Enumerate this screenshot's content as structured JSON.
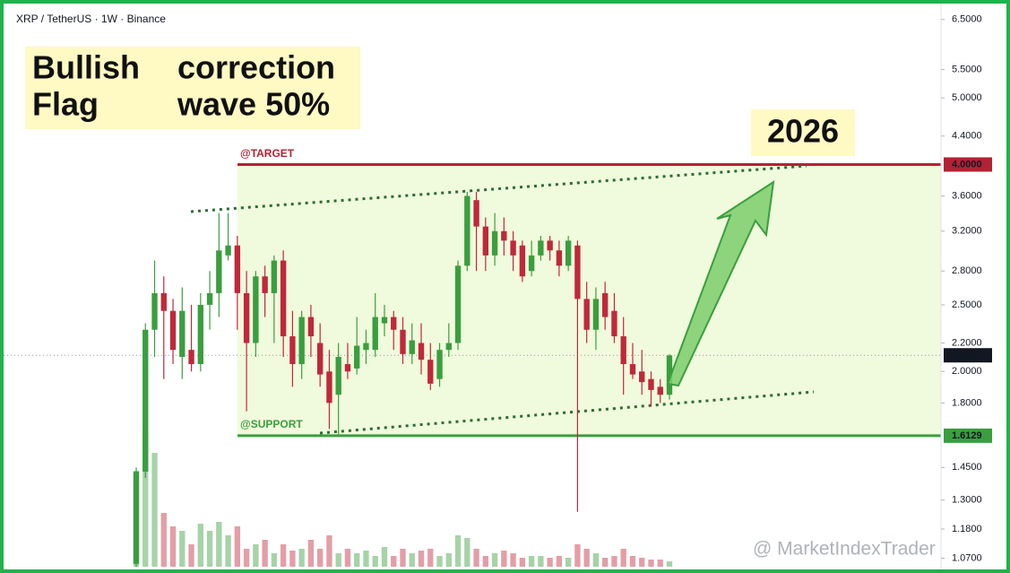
{
  "chart_data": {
    "type": "candlestick",
    "title": "XRP / TetherUS · 1W · Binance",
    "annotations": {
      "box_words": [
        "Bullish",
        "correction",
        "Flag",
        "wave 50%"
      ],
      "year": "2026",
      "target_text": "@TARGET",
      "support_text": "@SUPPORT",
      "watermark": "@ MarketIndexTrader"
    },
    "log_scale": true,
    "ylim": [
      1.04,
      6.94
    ],
    "yticks": [
      {
        "value": 6.5,
        "label": "6.5000"
      },
      {
        "value": 5.5,
        "label": "5.5000"
      },
      {
        "value": 5,
        "label": "5.0000"
      },
      {
        "value": 4.4,
        "label": "4.4000"
      },
      {
        "value": 3.6,
        "label": "3.6000"
      },
      {
        "value": 3.2,
        "label": "3.2000"
      },
      {
        "value": 2.8,
        "label": "2.8000"
      },
      {
        "value": 2.5,
        "label": "2.5000"
      },
      {
        "value": 2.2,
        "label": "2.2000"
      },
      {
        "value": 2,
        "label": "2.0000"
      },
      {
        "value": 1.8,
        "label": "1.8000"
      },
      {
        "value": 1.45,
        "label": "1.4500"
      },
      {
        "value": 1.3,
        "label": "1.3000"
      },
      {
        "value": 1.18,
        "label": "1.1800"
      },
      {
        "value": 1.07,
        "label": "1.0700"
      }
    ],
    "target": {
      "value": 4,
      "label": "4.0000",
      "color": "#b22234"
    },
    "support": {
      "value": 1.6129,
      "label": "1.6129",
      "color": "#3a9e3f"
    },
    "last_price": {
      "value": 2.1113,
      "label": "2.1113",
      "color": "#131722"
    },
    "up_color": "#3a9e3f",
    "down_color": "#c0283b",
    "open": [
      1.05,
      1.43,
      2.3,
      2.6,
      2.45,
      2.1,
      2.15,
      2.05,
      2.5,
      2.6,
      2.95,
      3.05,
      2.6,
      2.2,
      2.75,
      2.6,
      2.9,
      2.25,
      2.05,
      2.4,
      2.2,
      2.0,
      1.85,
      2.05,
      2.02,
      2.15,
      2.15,
      2.35,
      2.4,
      2.3,
      2.12,
      2.2,
      2.08,
      1.95,
      2.15,
      2.2,
      2.85,
      3.55,
      3.25,
      2.95,
      3.2,
      3.1,
      3.05,
      2.8,
      2.95,
      3.1,
      3.0,
      2.85,
      3.05,
      2.55,
      2.3,
      2.6,
      2.45,
      2.25,
      2.05,
      2.0,
      1.95,
      1.9,
      1.85
    ],
    "high": [
      1.45,
      2.35,
      2.9,
      2.75,
      2.55,
      2.65,
      2.5,
      2.6,
      2.8,
      3.4,
      3.4,
      3.15,
      2.8,
      2.8,
      2.85,
      2.95,
      3.0,
      2.45,
      2.45,
      2.5,
      2.35,
      2.15,
      2.2,
      2.2,
      2.4,
      2.3,
      2.6,
      2.5,
      2.45,
      2.4,
      2.35,
      2.35,
      2.2,
      2.2,
      2.35,
      2.9,
      3.65,
      3.65,
      3.35,
      3.4,
      3.35,
      3.2,
      3.1,
      3.1,
      3.15,
      3.15,
      3.1,
      3.15,
      3.1,
      2.7,
      2.65,
      2.7,
      2.6,
      2.4,
      2.2,
      2.15,
      2.0,
      1.95,
      2.12
    ],
    "low": [
      1.0,
      1.4,
      2.1,
      1.95,
      2.05,
      1.95,
      2.0,
      2.0,
      2.3,
      2.4,
      2.9,
      2.3,
      1.75,
      2.1,
      2.4,
      2.2,
      2.1,
      1.9,
      1.95,
      2.1,
      1.9,
      1.65,
      1.62,
      1.95,
      1.98,
      2.05,
      2.1,
      2.25,
      2.15,
      2.05,
      2.05,
      1.98,
      1.88,
      1.9,
      2.1,
      2.15,
      2.8,
      2.8,
      2.8,
      2.85,
      2.95,
      2.8,
      2.7,
      2.75,
      2.9,
      2.9,
      2.75,
      2.8,
      1.25,
      2.2,
      2.15,
      2.3,
      2.2,
      1.85,
      1.95,
      1.85,
      1.78,
      1.8,
      1.82
    ],
    "close": [
      1.43,
      2.3,
      2.6,
      2.45,
      2.15,
      2.45,
      2.05,
      2.5,
      2.6,
      3.0,
      3.05,
      2.6,
      2.2,
      2.75,
      2.6,
      2.9,
      2.25,
      2.05,
      2.4,
      2.25,
      1.98,
      1.8,
      2.1,
      2.0,
      2.18,
      2.2,
      2.4,
      2.4,
      2.3,
      2.12,
      2.22,
      2.08,
      1.92,
      2.15,
      2.2,
      2.85,
      3.6,
      3.25,
      2.95,
      3.2,
      3.1,
      2.95,
      2.75,
      2.95,
      3.1,
      3.0,
      2.85,
      3.1,
      2.55,
      2.3,
      2.55,
      2.4,
      2.25,
      2.05,
      1.98,
      1.93,
      1.88,
      1.85,
      2.11
    ],
    "volume": [
      107,
      154,
      127,
      60,
      45,
      40,
      25,
      48,
      40,
      50,
      35,
      45,
      20,
      25,
      30,
      15,
      25,
      18,
      20,
      30,
      20,
      35,
      15,
      20,
      15,
      18,
      12,
      22,
      12,
      20,
      15,
      18,
      20,
      12,
      15,
      35,
      32,
      20,
      12,
      15,
      18,
      15,
      10,
      12,
      12,
      10,
      12,
      10,
      25,
      20,
      15,
      10,
      12,
      20,
      12,
      10,
      8,
      8,
      6
    ],
    "volume_lim": [
      0,
      200
    ]
  }
}
